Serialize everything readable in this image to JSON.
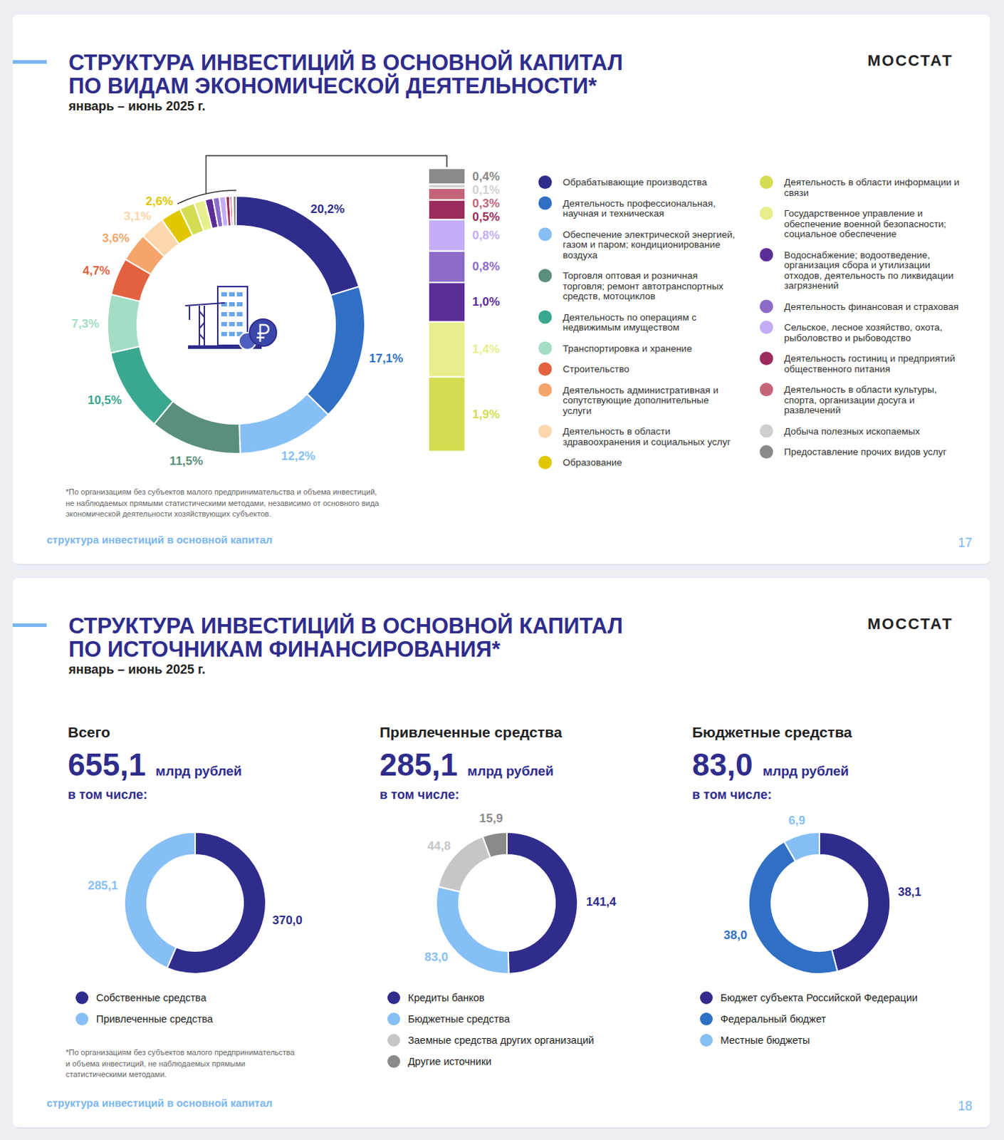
{
  "pages": [
    {
      "title": [
        "СТРУКТУРА ИНВЕСТИЦИЙ В ОСНОВНОЙ КАПИТАЛ",
        "ПО ВИДАМ ЭКОНОМИЧЕСКОЙ ДЕЯТЕЛЬНОСТИ*"
      ],
      "subtitle": "январь – июнь 2025 г.",
      "brand": "МОССТАТ",
      "footnote": [
        "*По организациям без субъектов малого предпринимательства и объема инвестиций,",
        "не наблюдаемых прямыми статистическими методами, независимо от основного вида",
        "экономической деятельности хозяйствующих субъектов."
      ],
      "section": "структура инвестиций в основной капитал",
      "page_number": 17
    },
    {
      "title": [
        "СТРУКТУРА ИНВЕСТИЦИЙ В ОСНОВНОЙ КАПИТАЛ",
        "ПО ИСТОЧНИКАМ ФИНАНСИРОВАНИЯ*"
      ],
      "subtitle": "январь – июнь 2025 г.",
      "brand": "МОССТАТ",
      "footnote": [
        "*По организациям без субъектов малого предпринимательства",
        "и объема инвестиций, не наблюдаемых прямыми",
        "статистическими методами."
      ],
      "section": "структура инвестиций в основной капитал",
      "page_number": 18
    }
  ],
  "chart_data": [
    {
      "type": "pie",
      "legend": "right",
      "data_labels": true,
      "categories": [
        "Обрабатывающие производства",
        "Деятельность профессиональная, научная и техническая",
        "Обеспечение электрической энергией, газом и паром; кондиционирование воздуха",
        "Торговля оптовая и розничная торговля; ремонт автотранспортных средств, мотоциклов",
        "Деятельность по операциям с недвижимым имуществом",
        "Транспортировка и хранение",
        "Строительство",
        "Деятельность административная и сопутствующие дополнительные услуги",
        "Деятельность в области здравоохранения и социальных услуг",
        "Образование"
      ],
      "values": [
        20.2,
        17.1,
        12.2,
        11.5,
        10.5,
        7.3,
        4.7,
        3.6,
        3.1,
        2.6
      ],
      "value_labels": [
        "20,2%",
        "17,1%",
        "12,2%",
        "11,5%",
        "10,5%",
        "7,3%",
        "4,7%",
        "3,6%",
        "3,1%",
        "2,6%"
      ],
      "colors": [
        "#2f2c8c",
        "#2f6fc4",
        "#86bff5",
        "#5a8f7b",
        "#3aa88f",
        "#a3ddc3",
        "#e2623f",
        "#f5a46b",
        "#fcd6ac",
        "#e0c700"
      ],
      "detail": {
        "type": "bar",
        "stacked": true,
        "data_labels": true,
        "categories": [
          "Деятельность в области информации и связи",
          "Государственное управление и обеспечение военной безопасности; социальное обеспечение",
          "Водоснабжение; водоотведение, организация сбора и утилизации отходов, деятельность по ликвидации загрязнений",
          "Деятельность финансовая и страховая",
          "Сельское, лесное хозяйство, охота, рыболовство и рыбоводство",
          "Деятельность гостиниц и предприятий общественного питания",
          "Деятельность в области культуры, спорта, организации досуга и развлечений",
          "Добыча полезных ископаемых",
          "Предоставление прочих видов услуг"
        ],
        "values": [
          1.9,
          1.4,
          1.0,
          0.8,
          0.8,
          0.5,
          0.3,
          0.1,
          0.4
        ],
        "value_labels": [
          "1,9%",
          "1,4%",
          "1,0%",
          "0,8%",
          "0,8%",
          "0,5%",
          "0,3%",
          "0,1%",
          "0,4%"
        ],
        "colors": [
          "#d4dd52",
          "#e7ef8c",
          "#5b2d98",
          "#8c6bc9",
          "#c3adf7",
          "#9b2c5c",
          "#c46478",
          "#cfcfcf",
          "#8a8a8a"
        ]
      }
    },
    {
      "type": "pie",
      "title": "Всего",
      "total": {
        "value": 655.1,
        "label": "655,1"
      },
      "unit": "млрд рублей",
      "subtitle": "в том числе:",
      "legend": "bottom",
      "data_labels": true,
      "categories": [
        "Собственные средства",
        "Привлеченные средства"
      ],
      "values": [
        370.0,
        285.1
      ],
      "value_labels": [
        "370,0",
        "285,1"
      ],
      "colors": [
        "#2f2c8c",
        "#86bff5"
      ]
    },
    {
      "type": "pie",
      "title": "Привлеченные средства",
      "total": {
        "value": 285.1,
        "label": "285,1"
      },
      "unit": "млрд рублей",
      "subtitle": "в том числе:",
      "legend": "bottom",
      "data_labels": true,
      "categories": [
        "Кредиты банков",
        "Бюджетные средства",
        "Заемные средства других организаций",
        "Другие источники"
      ],
      "values": [
        141.4,
        83.0,
        44.8,
        15.9
      ],
      "value_labels": [
        "141,4",
        "83,0",
        "44,8",
        "15,9"
      ],
      "colors": [
        "#2f2c8c",
        "#86bff5",
        "#c6c6c6",
        "#8a8a8a"
      ]
    },
    {
      "type": "pie",
      "title": "Бюджетные средства",
      "total": {
        "value": 83.0,
        "label": "83,0"
      },
      "unit": "млрд рублей",
      "subtitle": "в том числе:",
      "legend": "bottom",
      "data_labels": true,
      "categories": [
        "Бюджет субъекта Российской Федерации",
        "Федеральный бюджет",
        "Местные бюджеты"
      ],
      "values": [
        38.1,
        38.0,
        6.9
      ],
      "value_labels": [
        "38,1",
        "38,0",
        "6,9"
      ],
      "colors": [
        "#2f2c8c",
        "#2f6fc4",
        "#86bff5"
      ]
    }
  ]
}
